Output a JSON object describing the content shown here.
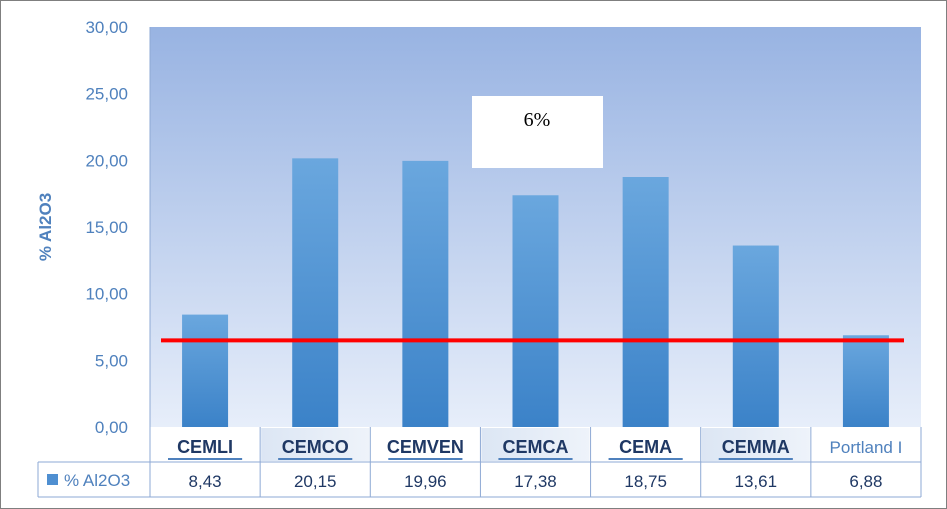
{
  "chart_data": {
    "type": "bar",
    "categories": [
      "CEMLI",
      "CEMCO",
      "CEMVEN",
      "CEMCA",
      "CEMA",
      "CEMMA",
      "Portland I"
    ],
    "series": [
      {
        "name": "% Al2O3",
        "values": [
          8.43,
          20.15,
          19.96,
          17.38,
          18.75,
          13.61,
          6.88
        ]
      }
    ],
    "value_labels": [
      "8,43",
      "20,15",
      "19,96",
      "17,38",
      "18,75",
      "13,61",
      "6,88"
    ],
    "ylabel": "% Al2O3",
    "ylim": [
      0,
      30
    ],
    "y_ticks": [
      "0,00",
      "5,00",
      "10,00",
      "15,00",
      "20,00",
      "25,00",
      "30,00"
    ],
    "reference_line": {
      "value": 6.5,
      "color": "#ff0000"
    },
    "annotation": "6%",
    "legend_placement": "data-table",
    "grid": false,
    "bar_color": "#5b9bd5",
    "plot_background": "#a9c0e6"
  }
}
